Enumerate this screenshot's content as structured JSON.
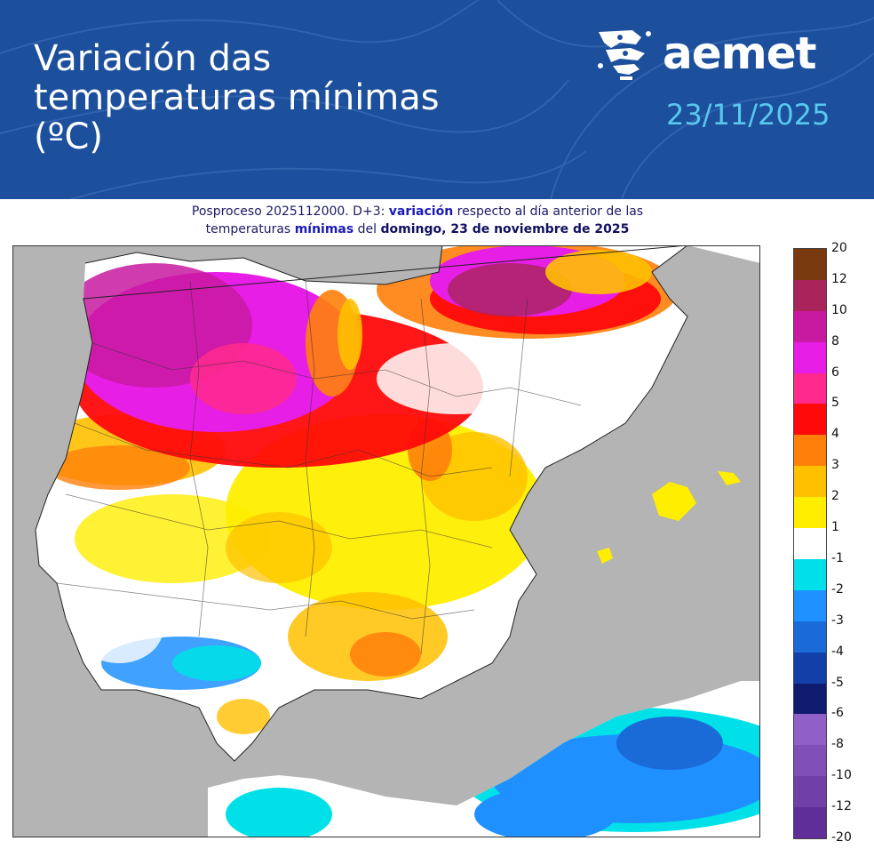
{
  "header": {
    "title_line1": "Variación das",
    "title_line2": "temperaturas mínimas",
    "title_line3": "(ºC)",
    "logo_text": "aemet",
    "date": "23/11/2025",
    "colors": {
      "background": "#1c4f9c",
      "date": "#58c8ef"
    }
  },
  "subtitle": {
    "l1_a": "Posproceso 2025112000. D+3: ",
    "l1_b": "variación",
    "l1_c": " respecto al día anterior de las",
    "l2_a": "temperaturas ",
    "l2_b": "mínimas",
    "l2_c": " del ",
    "l2_d": "domingo, 23 de noviembre de 2025"
  },
  "legend": {
    "labels": [
      "20",
      "12",
      "10",
      "8",
      "6",
      "5",
      "4",
      "3",
      "2",
      "1",
      "-1",
      "-2",
      "-3",
      "-4",
      "-5",
      "-6",
      "-8",
      "-10",
      "-12",
      "-20"
    ],
    "colors": [
      "#7a3a10",
      "#a8245a",
      "#c81aa0",
      "#e61ee6",
      "#ff2a8c",
      "#ff0a0a",
      "#ff7f0a",
      "#ffc000",
      "#ffee00",
      "#ffffff",
      "#00e0e8",
      "#1e90ff",
      "#1a6ad8",
      "#1240a8",
      "#101a6e",
      "#9060c8",
      "#8050b8",
      "#7040a8",
      "#602e98"
    ]
  },
  "map": {
    "colors": {
      "sea": "#b4b4b4",
      "land_base": "#ffffff"
    }
  }
}
